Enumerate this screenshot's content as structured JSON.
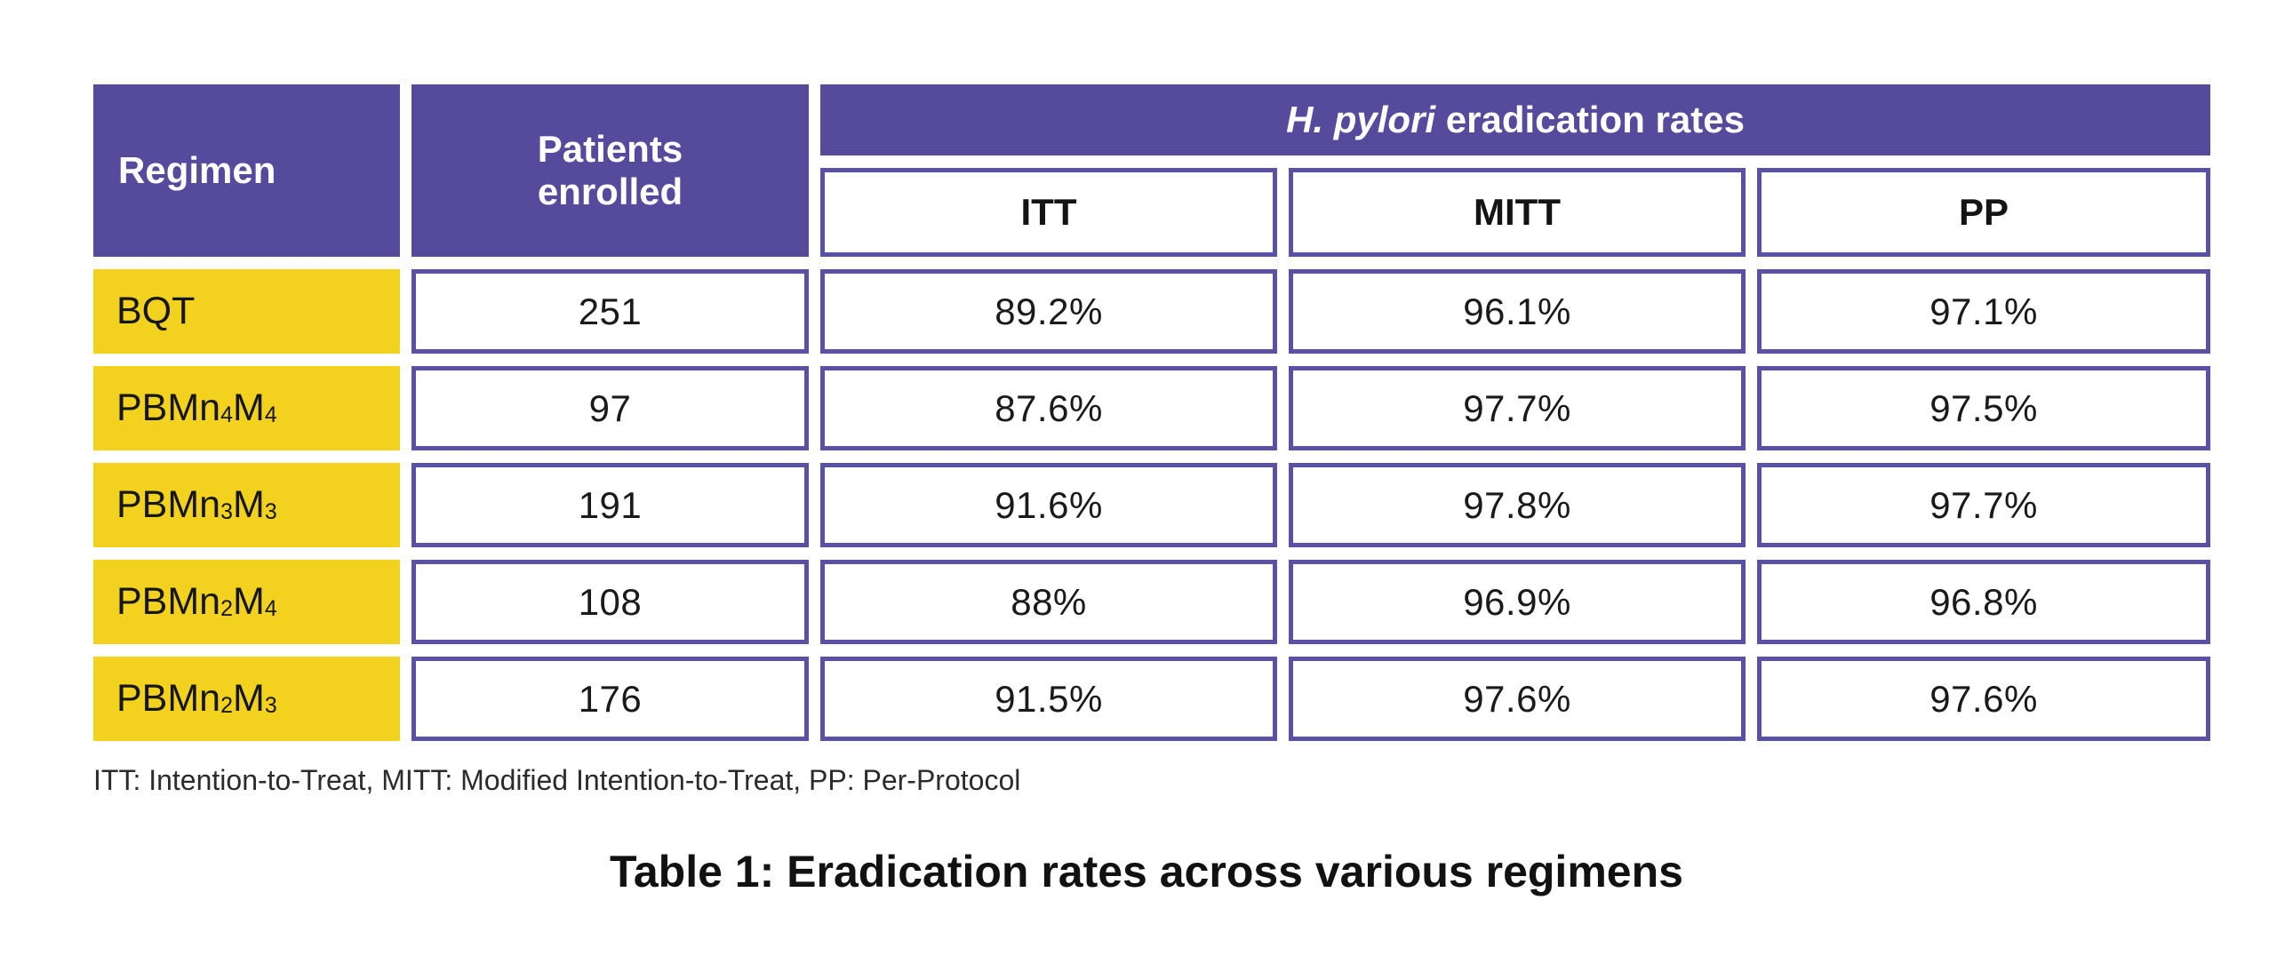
{
  "colors": {
    "header_purple": "#554a9c",
    "row_yellow": "#f2d21f",
    "cell_border": "#5a50a4",
    "text_black": "#1c1c1c"
  },
  "header": {
    "regimen": "Regimen",
    "patients": "Patients enrolled",
    "banner_italic": "H. pylori",
    "banner_rest": " eradication rates",
    "subcols": [
      "ITT",
      "MITT",
      "PP"
    ]
  },
  "rows": [
    {
      "regimen_parts": [
        [
          "BQT",
          0
        ]
      ],
      "patients": "251",
      "itt": "89.2%",
      "mitt": "96.1%",
      "pp": "97.1%"
    },
    {
      "regimen_parts": [
        [
          "PBMn",
          0
        ],
        [
          "4",
          1
        ],
        [
          "M",
          0
        ],
        [
          "4",
          1
        ]
      ],
      "patients": "97",
      "itt": "87.6%",
      "mitt": "97.7%",
      "pp": "97.5%"
    },
    {
      "regimen_parts": [
        [
          "PBMn",
          0
        ],
        [
          "3",
          1
        ],
        [
          "M",
          0
        ],
        [
          "3",
          1
        ]
      ],
      "patients": "191",
      "itt": "91.6%",
      "mitt": "97.8%",
      "pp": "97.7%"
    },
    {
      "regimen_parts": [
        [
          "PBMn",
          0
        ],
        [
          "2",
          1
        ],
        [
          "M",
          0
        ],
        [
          "4",
          1
        ]
      ],
      "patients": "108",
      "itt": "88%",
      "mitt": "96.9%",
      "pp": "96.8%"
    },
    {
      "regimen_parts": [
        [
          "PBMn",
          0
        ],
        [
          "2",
          1
        ],
        [
          "M",
          0
        ],
        [
          "3",
          1
        ]
      ],
      "patients": "176",
      "itt": "91.5%",
      "mitt": "97.6%",
      "pp": "97.6%"
    }
  ],
  "footnote": "ITT: Intention-to-Treat, MITT: Modified Intention-to-Treat, PP: Per-Protocol",
  "caption": "Table 1: Eradication rates across various regimens",
  "chart_data": {
    "type": "table",
    "title": "Table 1: Eradication rates across various regimens",
    "column_group": {
      "label": "H. pylori eradication rates",
      "spans": [
        "ITT",
        "MITT",
        "PP"
      ]
    },
    "columns": [
      "Regimen",
      "Patients enrolled",
      "ITT",
      "MITT",
      "PP"
    ],
    "rows": [
      [
        "BQT",
        251,
        "89.2%",
        "96.1%",
        "97.1%"
      ],
      [
        "PBMn4M4",
        97,
        "87.6%",
        "97.7%",
        "97.5%"
      ],
      [
        "PBMn3M3",
        191,
        "91.6%",
        "97.8%",
        "97.7%"
      ],
      [
        "PBMn2M4",
        108,
        "88%",
        "96.9%",
        "96.8%"
      ],
      [
        "PBMn2M3",
        176,
        "91.5%",
        "97.6%",
        "97.6%"
      ]
    ],
    "footnote": "ITT: Intention-to-Treat, MITT: Modified Intention-to-Treat, PP: Per-Protocol"
  }
}
